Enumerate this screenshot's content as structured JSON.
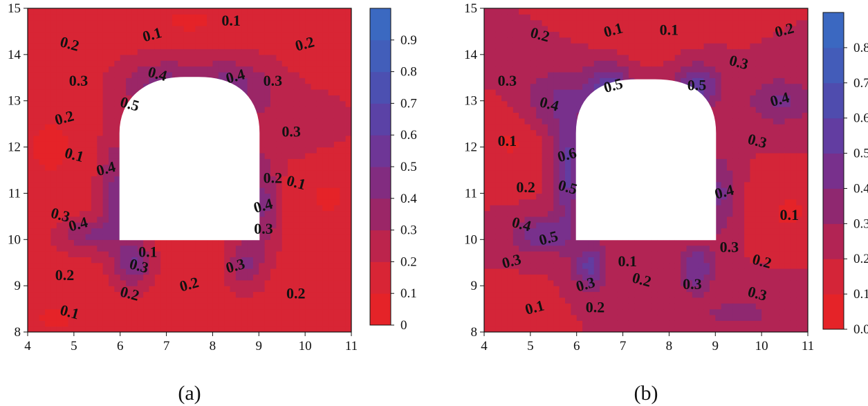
{
  "chart_data": [
    {
      "type": "contour",
      "panel_label": "(a)",
      "xlim": [
        4,
        11
      ],
      "ylim": [
        8,
        15
      ],
      "x_ticks": [
        "4",
        "5",
        "6",
        "7",
        "8",
        "9",
        "10",
        "11"
      ],
      "y_ticks": [
        "8",
        "9",
        "10",
        "11",
        "12",
        "13",
        "14",
        "15"
      ],
      "colorbar": {
        "range": [
          0,
          1.0
        ],
        "levels": [
          0,
          0.1,
          0.2,
          0.3,
          0.4,
          0.5,
          0.6,
          0.7,
          0.8,
          0.9,
          1.0
        ],
        "tick_labels": [
          "0",
          "0.1",
          "0.2",
          "0.3",
          "0.4",
          "0.5",
          "0.6",
          "0.7",
          "0.8",
          "0.9"
        ]
      },
      "opening": {
        "x_left": 6.0,
        "x_right": 9.0,
        "y_bottom": 10.0,
        "y_springline": 12.3,
        "crown_y": 13.5,
        "crown_x_left": 7.4,
        "crown_x_right": 7.7
      },
      "contour_labels": [
        {
          "text": "0.1",
          "x": 6.7,
          "y": 14.4
        },
        {
          "text": "0.1",
          "x": 8.4,
          "y": 14.7
        },
        {
          "text": "0.2",
          "x": 4.9,
          "y": 14.2
        },
        {
          "text": "0.2",
          "x": 10.0,
          "y": 14.2
        },
        {
          "text": "0.3",
          "x": 5.1,
          "y": 13.4
        },
        {
          "text": "0.4",
          "x": 6.8,
          "y": 13.55
        },
        {
          "text": "0.4",
          "x": 8.5,
          "y": 13.5
        },
        {
          "text": "0.3",
          "x": 9.3,
          "y": 13.4
        },
        {
          "text": "0.5",
          "x": 6.2,
          "y": 12.9
        },
        {
          "text": "0.2",
          "x": 4.8,
          "y": 12.6
        },
        {
          "text": "0.3",
          "x": 9.7,
          "y": 12.3
        },
        {
          "text": "0.1",
          "x": 5.0,
          "y": 11.8
        },
        {
          "text": "0.4",
          "x": 5.7,
          "y": 11.5
        },
        {
          "text": "0.2",
          "x": 9.3,
          "y": 11.3
        },
        {
          "text": "0.1",
          "x": 9.8,
          "y": 11.2
        },
        {
          "text": "0.4",
          "x": 9.1,
          "y": 10.7
        },
        {
          "text": "0.3",
          "x": 9.1,
          "y": 10.2
        },
        {
          "text": "0.3",
          "x": 4.7,
          "y": 10.5
        },
        {
          "text": "0.4",
          "x": 5.1,
          "y": 10.3
        },
        {
          "text": "0.1",
          "x": 6.6,
          "y": 9.7
        },
        {
          "text": "0.3",
          "x": 6.4,
          "y": 9.4
        },
        {
          "text": "0.3",
          "x": 8.5,
          "y": 9.4
        },
        {
          "text": "0.2",
          "x": 4.8,
          "y": 9.2
        },
        {
          "text": "0.2",
          "x": 6.2,
          "y": 8.8
        },
        {
          "text": "0.2",
          "x": 7.5,
          "y": 9.0
        },
        {
          "text": "0.2",
          "x": 9.8,
          "y": 8.8
        },
        {
          "text": "0.1",
          "x": 4.9,
          "y": 8.4
        }
      ]
    },
    {
      "type": "contour",
      "panel_label": "(b)",
      "xlim": [
        4,
        11
      ],
      "ylim": [
        8,
        15
      ],
      "x_ticks": [
        "4",
        "5",
        "6",
        "7",
        "8",
        "9",
        "10",
        "11"
      ],
      "y_ticks": [
        "8",
        "9",
        "10",
        "11",
        "12",
        "13",
        "14",
        "15"
      ],
      "colorbar": {
        "range": [
          0,
          0.9
        ],
        "levels": [
          0,
          0.1,
          0.2,
          0.3,
          0.4,
          0.5,
          0.6,
          0.7,
          0.8,
          0.9
        ],
        "tick_labels": [
          "0.0",
          "0.1",
          "0.2",
          "0.3",
          "0.4",
          "0.5",
          "0.6",
          "0.7",
          "0.8"
        ]
      },
      "opening": {
        "x_left": 6.0,
        "x_right": 9.0,
        "y_bottom": 10.0,
        "y_springline": 12.3,
        "crown_y": 13.45,
        "crown_x_left": 7.3,
        "crown_x_right": 7.7
      },
      "contour_labels": [
        {
          "text": "0.1",
          "x": 6.8,
          "y": 14.5
        },
        {
          "text": "0.1",
          "x": 8.0,
          "y": 14.5
        },
        {
          "text": "0.2",
          "x": 5.2,
          "y": 14.4
        },
        {
          "text": "0.2",
          "x": 10.5,
          "y": 14.5
        },
        {
          "text": "0.3",
          "x": 4.5,
          "y": 13.4
        },
        {
          "text": "0.4",
          "x": 5.4,
          "y": 12.9
        },
        {
          "text": "0.5",
          "x": 6.8,
          "y": 13.3
        },
        {
          "text": "0.5",
          "x": 8.6,
          "y": 13.3
        },
        {
          "text": "0.3",
          "x": 9.5,
          "y": 13.8
        },
        {
          "text": "0.4",
          "x": 10.4,
          "y": 13.0
        },
        {
          "text": "0.1",
          "x": 4.5,
          "y": 12.1
        },
        {
          "text": "0.3",
          "x": 9.9,
          "y": 12.1
        },
        {
          "text": "0.6",
          "x": 5.8,
          "y": 11.8
        },
        {
          "text": "0.2",
          "x": 4.9,
          "y": 11.1
        },
        {
          "text": "0.5",
          "x": 5.8,
          "y": 11.1
        },
        {
          "text": "0.4",
          "x": 9.2,
          "y": 11.0
        },
        {
          "text": "0.1",
          "x": 10.6,
          "y": 10.5
        },
        {
          "text": "0.4",
          "x": 4.8,
          "y": 10.3
        },
        {
          "text": "0.5",
          "x": 5.4,
          "y": 10.0
        },
        {
          "text": "0.3",
          "x": 9.3,
          "y": 9.8
        },
        {
          "text": "0.2",
          "x": 10.0,
          "y": 9.5
        },
        {
          "text": "0.3",
          "x": 4.6,
          "y": 9.5
        },
        {
          "text": "0.1",
          "x": 7.1,
          "y": 9.5
        },
        {
          "text": "0.2",
          "x": 7.4,
          "y": 9.1
        },
        {
          "text": "0.3",
          "x": 6.2,
          "y": 9.0
        },
        {
          "text": "0.3",
          "x": 8.5,
          "y": 9.0
        },
        {
          "text": "0.3",
          "x": 9.9,
          "y": 8.8
        },
        {
          "text": "0.1",
          "x": 5.1,
          "y": 8.5
        },
        {
          "text": "0.2",
          "x": 6.4,
          "y": 8.5
        }
      ]
    }
  ]
}
